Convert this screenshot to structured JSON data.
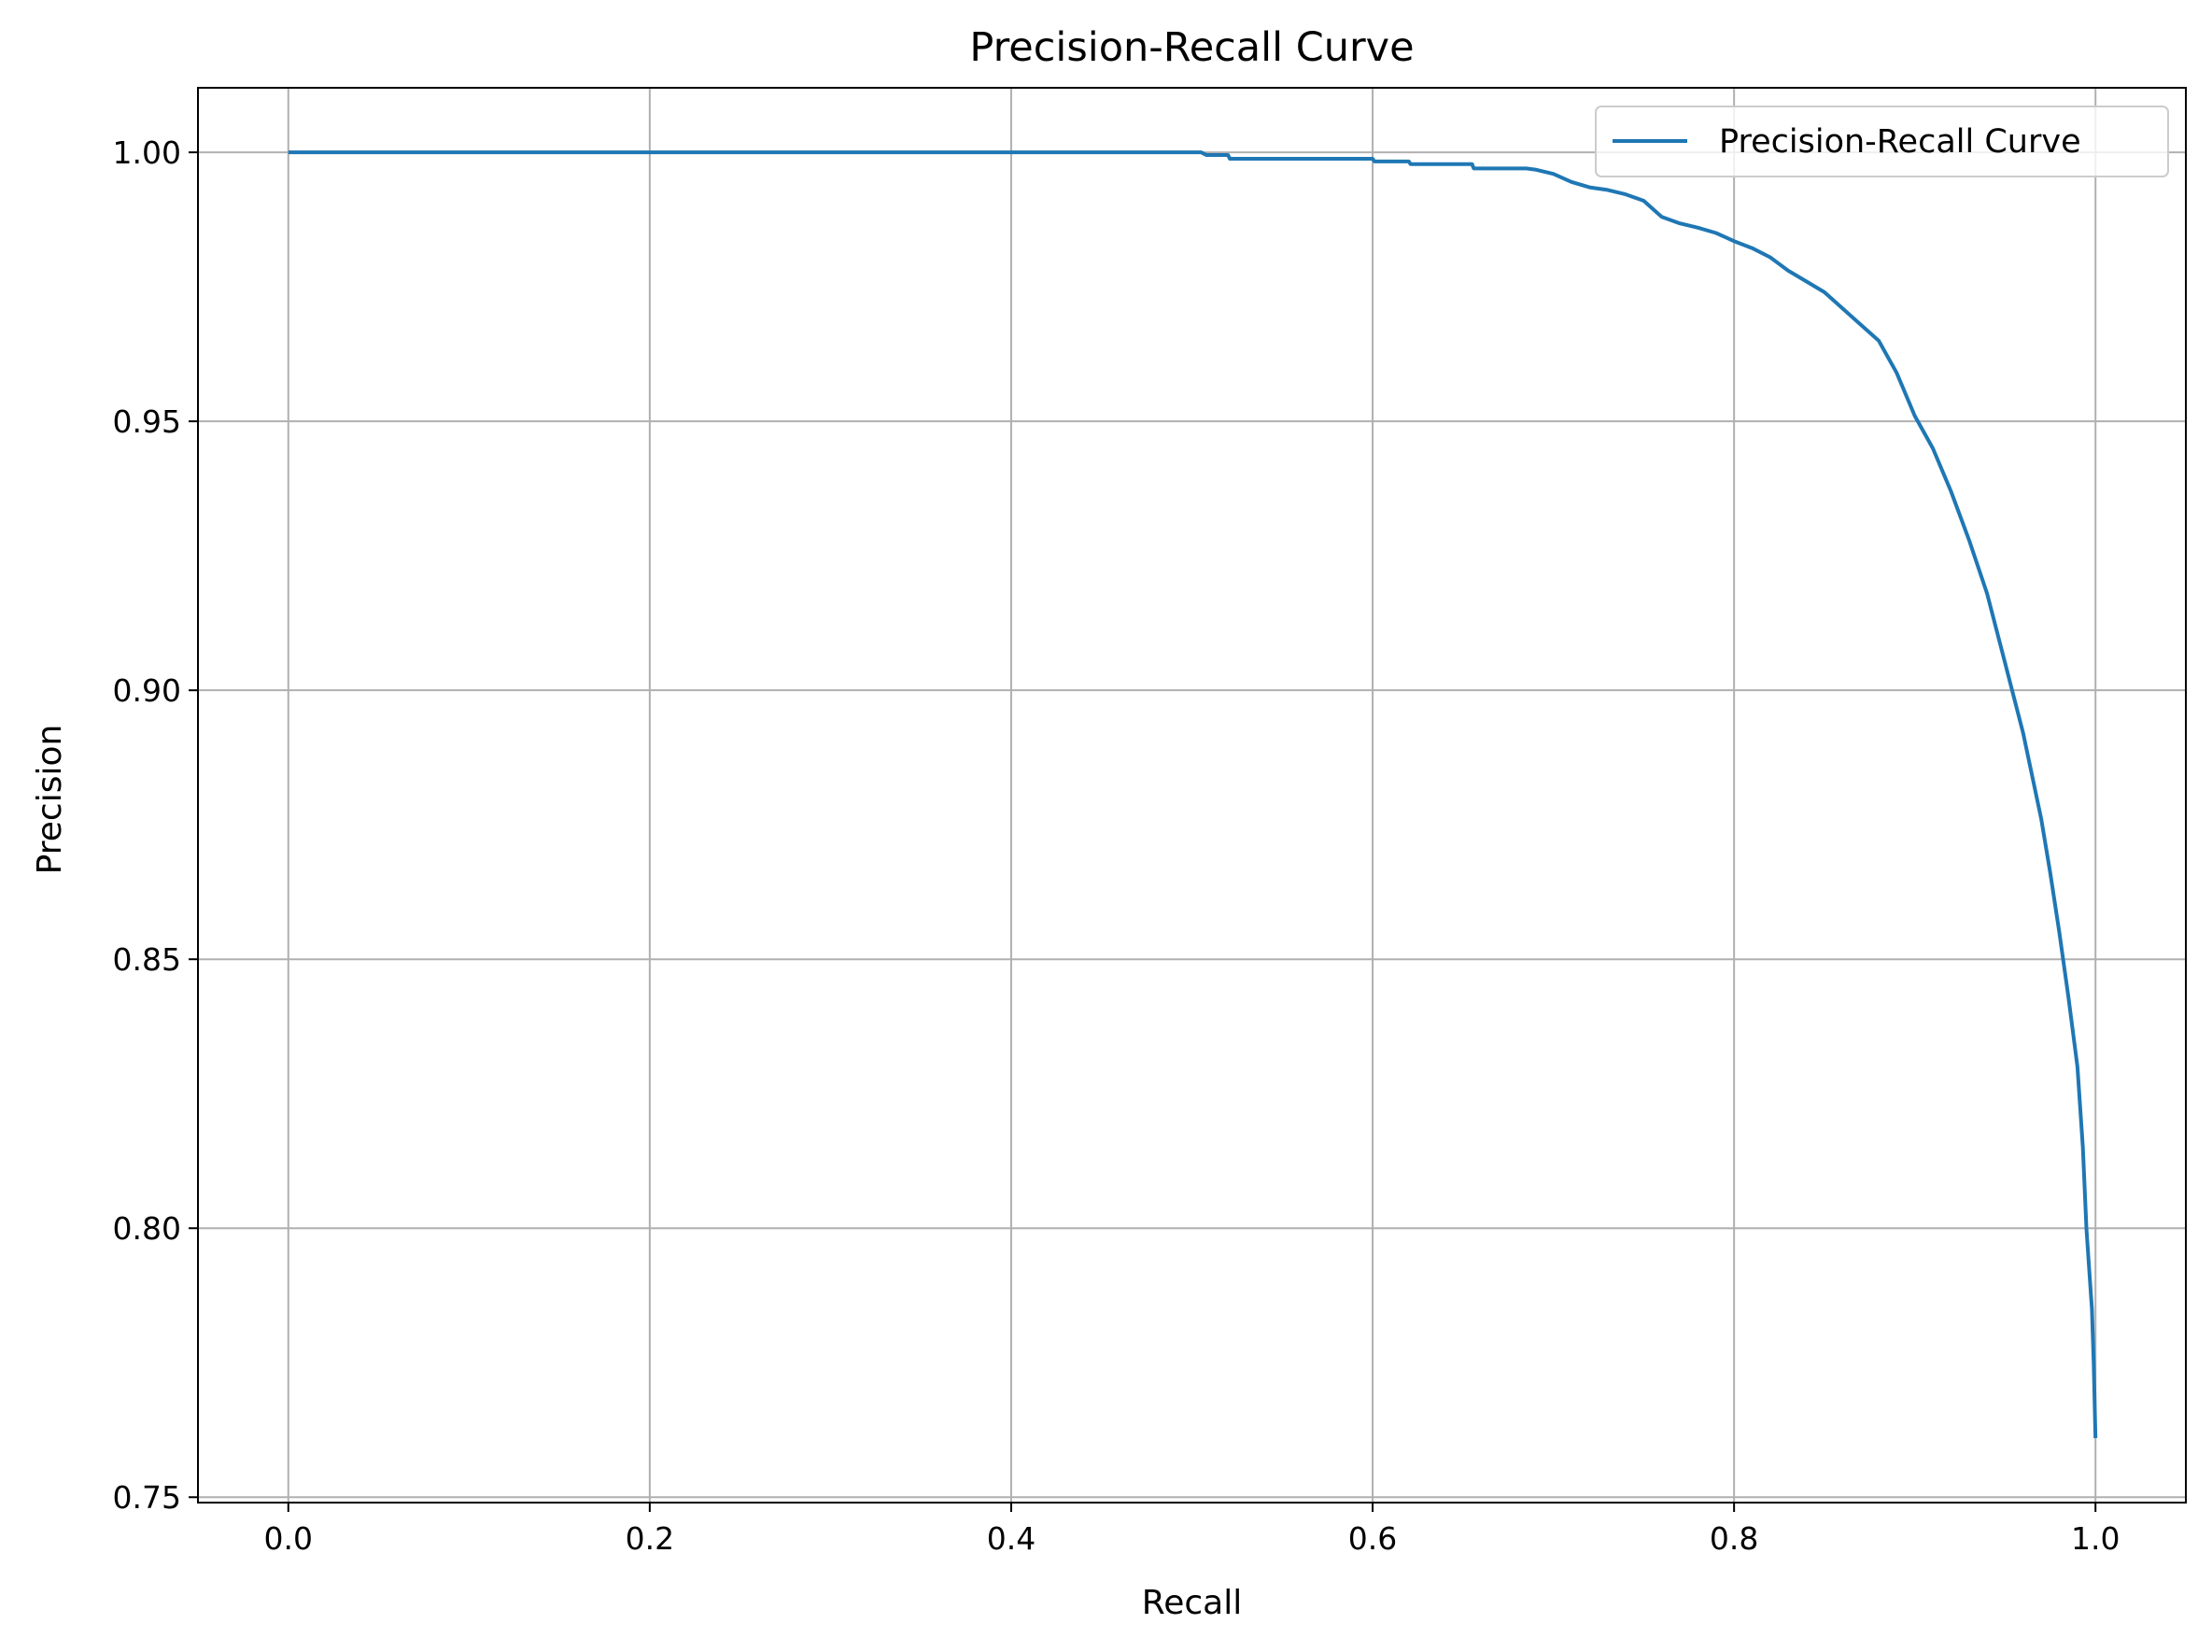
{
  "chart_data": {
    "type": "line",
    "title": "Precision-Recall Curve",
    "xlabel": "Recall",
    "ylabel": "Precision",
    "xlim": [
      -0.05,
      1.05
    ],
    "ylim": [
      0.749,
      1.012
    ],
    "xticks": [
      0.0,
      0.2,
      0.4,
      0.6,
      0.8,
      1.0
    ],
    "xtick_labels": [
      "0.0",
      "0.2",
      "0.4",
      "0.6",
      "0.8",
      "1.0"
    ],
    "yticks": [
      0.75,
      0.8,
      0.85,
      0.9,
      0.95,
      1.0
    ],
    "ytick_labels": [
      "0.75",
      "0.80",
      "0.85",
      "0.90",
      "0.95",
      "1.00"
    ],
    "grid": true,
    "legend": {
      "position": "top-right",
      "entries": [
        "Precision-Recall Curve"
      ]
    },
    "colors": {
      "series": "#1f77b4"
    },
    "series": [
      {
        "name": "Precision-Recall Curve",
        "x": [
          0.0,
          0.2,
          0.4,
          0.5,
          0.505,
          0.508,
          0.52,
          0.521,
          0.6,
          0.601,
          0.62,
          0.621,
          0.655,
          0.656,
          0.685,
          0.69,
          0.7,
          0.71,
          0.72,
          0.73,
          0.74,
          0.75,
          0.755,
          0.76,
          0.77,
          0.78,
          0.79,
          0.8,
          0.81,
          0.82,
          0.83,
          0.84,
          0.85,
          0.86,
          0.87,
          0.88,
          0.89,
          0.9,
          0.91,
          0.92,
          0.93,
          0.94,
          0.95,
          0.96,
          0.97,
          0.975,
          0.98,
          0.985,
          0.99,
          0.993,
          0.995,
          0.997,
          0.998,
          0.999,
          1.0
        ],
        "y": [
          1.0,
          1.0,
          1.0,
          1.0,
          1.0,
          0.9995,
          0.9995,
          0.9988,
          0.9988,
          0.9983,
          0.9983,
          0.9978,
          0.9978,
          0.997,
          0.997,
          0.9968,
          0.996,
          0.9945,
          0.9935,
          0.993,
          0.9922,
          0.991,
          0.9895,
          0.988,
          0.9868,
          0.986,
          0.985,
          0.9835,
          0.9822,
          0.9805,
          0.978,
          0.976,
          0.974,
          0.971,
          0.968,
          0.965,
          0.959,
          0.951,
          0.945,
          0.937,
          0.928,
          0.918,
          0.905,
          0.892,
          0.876,
          0.866,
          0.855,
          0.843,
          0.83,
          0.815,
          0.8,
          0.79,
          0.785,
          0.775,
          0.761
        ]
      }
    ]
  }
}
